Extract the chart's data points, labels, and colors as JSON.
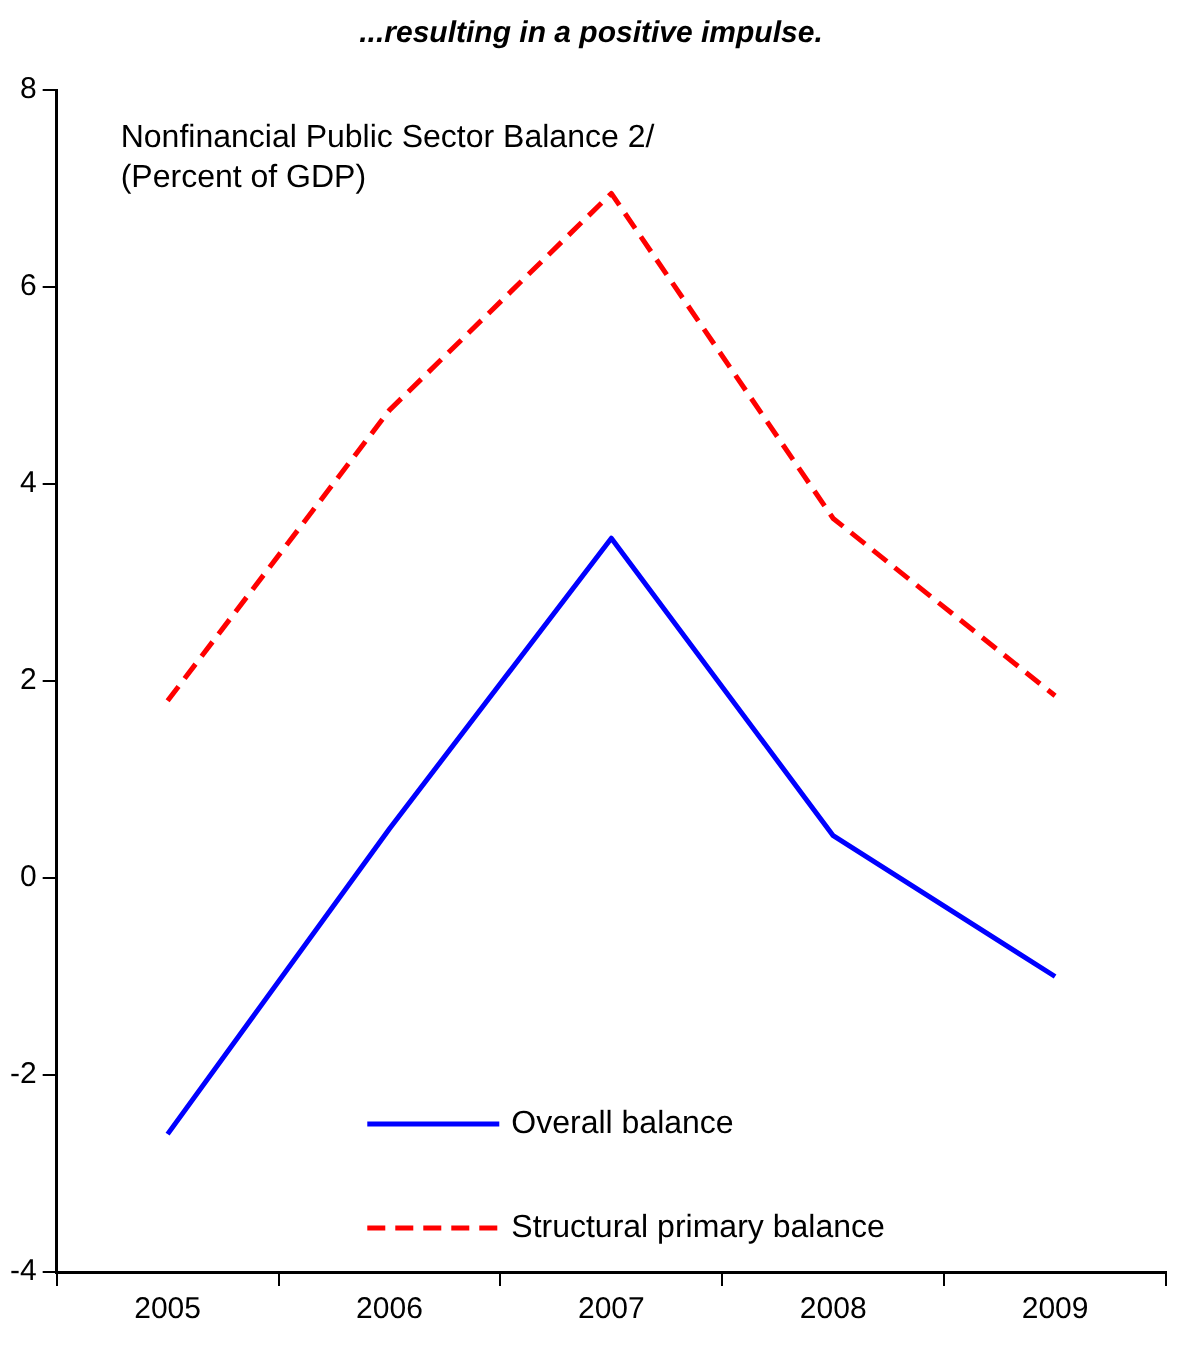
{
  "chart_data": {
    "type": "line",
    "title": "...resulting in a positive impulse.",
    "annotations": [
      "Nonfinancial Public Sector Balance 2/",
      "(Percent of GDP)"
    ],
    "categories": [
      "2005",
      "2006",
      "2007",
      "2008",
      "2009"
    ],
    "series": [
      {
        "name": "Overall balance",
        "color": "#0000ff",
        "values": [
          -2.6,
          0.5,
          3.45,
          0.43,
          -1.0
        ]
      },
      {
        "name": "Structural primary balance",
        "color": "#ff0000",
        "line_style": "dashed",
        "values": [
          1.8,
          4.75,
          6.95,
          3.65,
          1.85
        ]
      }
    ],
    "ylim": [
      -4,
      8
    ],
    "yticks": [
      -4,
      -2,
      0,
      2,
      4,
      6,
      8
    ],
    "grid": false,
    "legend": "bottom",
    "marker": "none"
  }
}
